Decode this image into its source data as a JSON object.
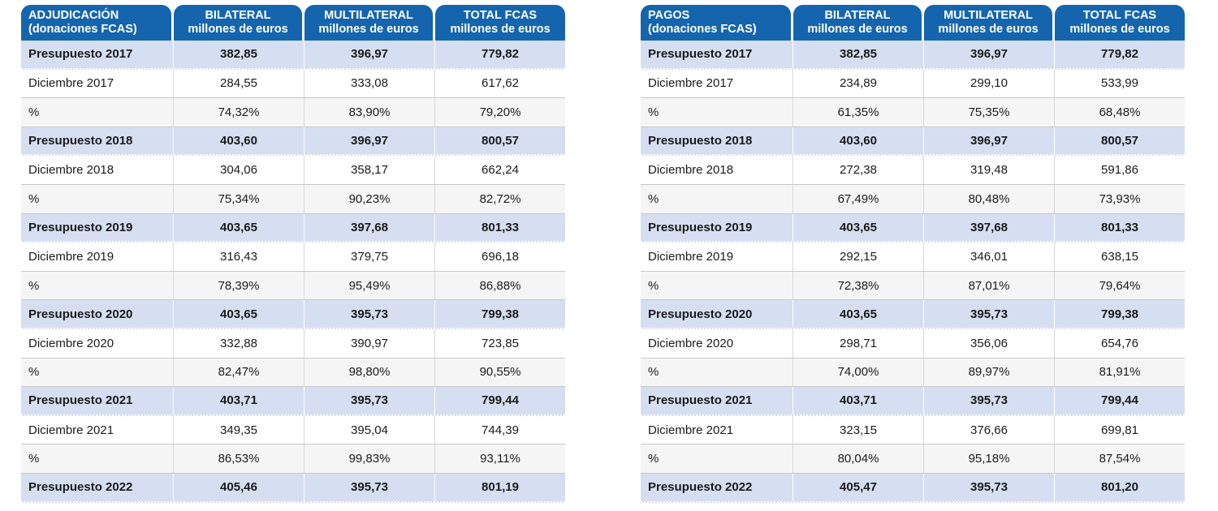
{
  "tables": [
    {
      "header": {
        "col1_line1": "ADJUDICACIÓN",
        "col1_line2": "(donaciones FCAS)",
        "col2_line1": "BILATERAL",
        "col2_line2": "millones de euros",
        "col3_line1": "MULTILATERAL",
        "col3_line2": "millones de euros",
        "col4_line1": "TOTAL FCAS",
        "col4_line2": "millones de euros"
      },
      "rows": [
        {
          "type": "budget",
          "label": "Presupuesto 2017",
          "bilateral": "382,85",
          "multilateral": "396,97",
          "total": "779,82"
        },
        {
          "type": "month",
          "label": "Diciembre 2017",
          "bilateral": "284,55",
          "multilateral": "333,08",
          "total": "617,62"
        },
        {
          "type": "pct",
          "label": "%",
          "bilateral": "74,32%",
          "multilateral": "83,90%",
          "total": "79,20%"
        },
        {
          "type": "budget",
          "label": "Presupuesto 2018",
          "bilateral": "403,60",
          "multilateral": "396,97",
          "total": "800,57"
        },
        {
          "type": "month",
          "label": "Diciembre 2018",
          "bilateral": "304,06",
          "multilateral": "358,17",
          "total": "662,24"
        },
        {
          "type": "pct",
          "label": "%",
          "bilateral": "75,34%",
          "multilateral": "90,23%",
          "total": "82,72%"
        },
        {
          "type": "budget",
          "label": "Presupuesto 2019",
          "bilateral": "403,65",
          "multilateral": "397,68",
          "total": "801,33"
        },
        {
          "type": "month",
          "label": "Diciembre 2019",
          "bilateral": "316,43",
          "multilateral": "379,75",
          "total": "696,18"
        },
        {
          "type": "pct",
          "label": "%",
          "bilateral": "78,39%",
          "multilateral": "95,49%",
          "total": "86,88%"
        },
        {
          "type": "budget",
          "label": "Presupuesto 2020",
          "bilateral": "403,65",
          "multilateral": "395,73",
          "total": "799,38"
        },
        {
          "type": "month",
          "label": "Diciembre 2020",
          "bilateral": "332,88",
          "multilateral": "390,97",
          "total": "723,85"
        },
        {
          "type": "pct",
          "label": "%",
          "bilateral": "82,47%",
          "multilateral": "98,80%",
          "total": "90,55%"
        },
        {
          "type": "budget",
          "label": "Presupuesto 2021",
          "bilateral": "403,71",
          "multilateral": "395,73",
          "total": "799,44"
        },
        {
          "type": "month",
          "label": "Diciembre 2021",
          "bilateral": "349,35",
          "multilateral": "395,04",
          "total": "744,39"
        },
        {
          "type": "pct",
          "label": "%",
          "bilateral": "86,53%",
          "multilateral": "99,83%",
          "total": "93,11%"
        },
        {
          "type": "budget",
          "label": "Presupuesto 2022",
          "bilateral": "405,46",
          "multilateral": "395,73",
          "total": "801,19"
        }
      ]
    },
    {
      "header": {
        "col1_line1": "PAGOS",
        "col1_line2": "(donaciones FCAS)",
        "col2_line1": "BILATERAL",
        "col2_line2": "millones de euros",
        "col3_line1": "MULTILATERAL",
        "col3_line2": "millones de euros",
        "col4_line1": "TOTAL FCAS",
        "col4_line2": "millones de euros"
      },
      "rows": [
        {
          "type": "budget",
          "label": "Presupuesto 2017",
          "bilateral": "382,85",
          "multilateral": "396,97",
          "total": "779,82"
        },
        {
          "type": "month",
          "label": "Diciembre 2017",
          "bilateral": "234,89",
          "multilateral": "299,10",
          "total": "533,99"
        },
        {
          "type": "pct",
          "label": "%",
          "bilateral": "61,35%",
          "multilateral": "75,35%",
          "total": "68,48%"
        },
        {
          "type": "budget",
          "label": "Presupuesto 2018",
          "bilateral": "403,60",
          "multilateral": "396,97",
          "total": "800,57"
        },
        {
          "type": "month",
          "label": "Diciembre 2018",
          "bilateral": "272,38",
          "multilateral": "319,48",
          "total": "591,86"
        },
        {
          "type": "pct",
          "label": "%",
          "bilateral": "67,49%",
          "multilateral": "80,48%",
          "total": "73,93%"
        },
        {
          "type": "budget",
          "label": "Presupuesto 2019",
          "bilateral": "403,65",
          "multilateral": "397,68",
          "total": "801,33"
        },
        {
          "type": "month",
          "label": "Diciembre 2019",
          "bilateral": "292,15",
          "multilateral": "346,01",
          "total": "638,15"
        },
        {
          "type": "pct",
          "label": "%",
          "bilateral": "72,38%",
          "multilateral": "87,01%",
          "total": "79,64%"
        },
        {
          "type": "budget",
          "label": "Presupuesto 2020",
          "bilateral": "403,65",
          "multilateral": "395,73",
          "total": "799,38"
        },
        {
          "type": "month",
          "label": "Diciembre 2020",
          "bilateral": "298,71",
          "multilateral": "356,06",
          "total": "654,76"
        },
        {
          "type": "pct",
          "label": "%",
          "bilateral": "74,00%",
          "multilateral": "89,97%",
          "total": "81,91%"
        },
        {
          "type": "budget",
          "label": "Presupuesto 2021",
          "bilateral": "403,71",
          "multilateral": "395,73",
          "total": "799,44"
        },
        {
          "type": "month",
          "label": "Diciembre 2021",
          "bilateral": "323,15",
          "multilateral": "376,66",
          "total": "699,81"
        },
        {
          "type": "pct",
          "label": "%",
          "bilateral": "80,04%",
          "multilateral": "95,18%",
          "total": "87,54%"
        },
        {
          "type": "budget",
          "label": "Presupuesto 2022",
          "bilateral": "405,47",
          "multilateral": "395,73",
          "total": "801,20"
        }
      ]
    }
  ]
}
